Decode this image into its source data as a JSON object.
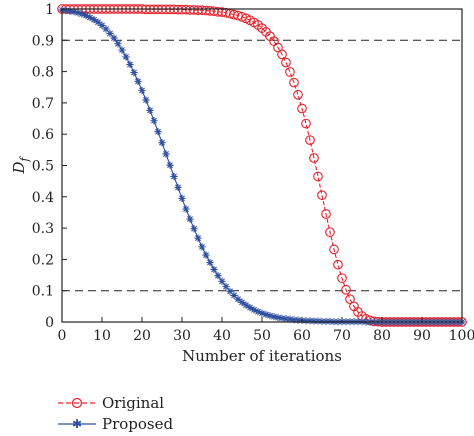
{
  "chart_data": {
    "type": "line",
    "xlabel": "Number of iterations",
    "ylabel_main": "D",
    "ylabel_sub": "f",
    "xlim": [
      0,
      100
    ],
    "ylim": [
      0,
      1
    ],
    "xticks": [
      "0",
      "10",
      "20",
      "30",
      "40",
      "50",
      "60",
      "70",
      "80",
      "90",
      "100"
    ],
    "yticks": [
      "0",
      "0.1",
      "0.2",
      "0.3",
      "0.4",
      "0.5",
      "0.6",
      "0.7",
      "0.8",
      "0.9",
      "1"
    ],
    "reference_lines": [
      0.9,
      0.1
    ],
    "grid": false,
    "legend_position": "bottom-left",
    "x": [
      0,
      1,
      2,
      3,
      4,
      5,
      6,
      7,
      8,
      9,
      10,
      11,
      12,
      13,
      14,
      15,
      16,
      17,
      18,
      19,
      20,
      21,
      22,
      23,
      24,
      25,
      26,
      27,
      28,
      29,
      30,
      31,
      32,
      33,
      34,
      35,
      36,
      37,
      38,
      39,
      40,
      41,
      42,
      43,
      44,
      45,
      46,
      47,
      48,
      49,
      50,
      51,
      52,
      53,
      54,
      55,
      56,
      57,
      58,
      59,
      60,
      61,
      62,
      63,
      64,
      65,
      66,
      67,
      68,
      69,
      70,
      71,
      72,
      73,
      74,
      75,
      76,
      77,
      78,
      79,
      80,
      81,
      82,
      83,
      84,
      85,
      86,
      87,
      88,
      89,
      90,
      91,
      92,
      93,
      94,
      95,
      96,
      97,
      98,
      99,
      100
    ],
    "series": [
      {
        "name": "Original",
        "color": "#e8202a",
        "marker": "circle",
        "line_style": "dashed",
        "values": [
          1.0,
          1.0,
          1.0,
          1.0,
          1.0,
          1.0,
          1.0,
          1.0,
          1.0,
          1.0,
          1.0,
          1.0,
          1.0,
          1.0,
          1.0,
          1.0,
          1.0,
          1.0,
          1.0,
          1.0,
          1.0,
          0.999,
          0.999,
          0.999,
          0.999,
          0.999,
          0.999,
          0.999,
          0.999,
          0.998,
          0.998,
          0.998,
          0.997,
          0.997,
          0.996,
          0.996,
          0.995,
          0.994,
          0.993,
          0.991,
          0.99,
          0.988,
          0.985,
          0.982,
          0.979,
          0.975,
          0.97,
          0.964,
          0.957,
          0.949,
          0.939,
          0.927,
          0.913,
          0.897,
          0.877,
          0.855,
          0.829,
          0.799,
          0.765,
          0.726,
          0.682,
          0.634,
          0.581,
          0.524,
          0.465,
          0.405,
          0.345,
          0.287,
          0.232,
          0.183,
          0.14,
          0.103,
          0.073,
          0.05,
          0.032,
          0.019,
          0.01,
          0.005,
          0.002,
          0.001,
          0.0,
          0.0,
          0.0,
          0.0,
          0.0,
          0.0,
          0.0,
          0.0,
          0.0,
          0.0,
          0.0,
          0.0,
          0.0,
          0.0,
          0.0,
          0.0,
          0.0,
          0.0,
          0.0,
          0.0,
          0.0
        ]
      },
      {
        "name": "Proposed",
        "color": "#2f4fa0",
        "marker": "star",
        "line_style": "solid",
        "values": [
          0.997,
          0.995,
          0.993,
          0.991,
          0.988,
          0.984,
          0.979,
          0.973,
          0.966,
          0.958,
          0.948,
          0.936,
          0.922,
          0.907,
          0.889,
          0.869,
          0.847,
          0.823,
          0.797,
          0.769,
          0.74,
          0.709,
          0.676,
          0.643,
          0.608,
          0.573,
          0.537,
          0.501,
          0.465,
          0.43,
          0.395,
          0.361,
          0.329,
          0.298,
          0.268,
          0.24,
          0.214,
          0.19,
          0.168,
          0.148,
          0.13,
          0.113,
          0.098,
          0.085,
          0.073,
          0.063,
          0.054,
          0.046,
          0.039,
          0.033,
          0.028,
          0.024,
          0.02,
          0.017,
          0.014,
          0.012,
          0.01,
          0.009,
          0.007,
          0.006,
          0.005,
          0.004,
          0.004,
          0.003,
          0.003,
          0.002,
          0.002,
          0.002,
          0.001,
          0.001,
          0.001,
          0.001,
          0.001,
          0.001,
          0.001,
          0.001,
          0.0,
          0.0,
          0.0,
          0.0,
          0.0,
          0.0,
          0.0,
          0.0,
          0.0,
          0.0,
          0.0,
          0.0,
          0.0,
          0.0,
          0.0,
          0.0,
          0.0,
          0.0,
          0.0,
          0.0,
          0.0,
          0.0,
          0.0,
          0.0,
          0.0
        ]
      }
    ]
  }
}
